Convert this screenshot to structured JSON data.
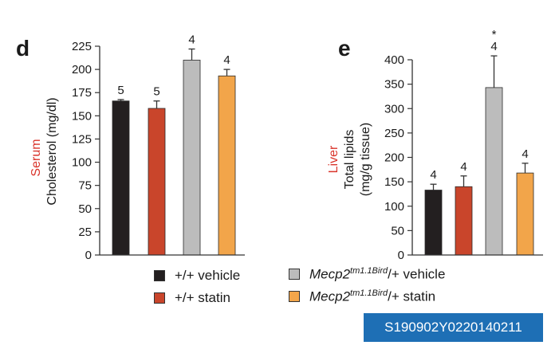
{
  "chart_data": [
    {
      "panel": "d",
      "type": "bar",
      "ylabel_colored": "Serum",
      "ylabel": "Cholesterol (mg/dl)",
      "ylim": [
        0,
        225
      ],
      "yticks": [
        0,
        25,
        50,
        75,
        100,
        125,
        150,
        175,
        200,
        225
      ],
      "categories": [
        "+/+ vehicle",
        "+/+ statin",
        "Mecp2tm1.1Bird/+ vehicle",
        "Mecp2tm1.1Bird/+ statin"
      ],
      "values": [
        166,
        158,
        210,
        193
      ],
      "errors": [
        1.5,
        8,
        12,
        7
      ],
      "n_labels": [
        "5",
        "5",
        "4",
        "4"
      ],
      "colors": [
        "#231f20",
        "#c9452b",
        "#bcbcbc",
        "#f2a54a"
      ],
      "grid": false
    },
    {
      "panel": "e",
      "type": "bar",
      "ylabel_colored": "Liver",
      "ylabel": "Total lipids",
      "ylabel2": "(mg/g tissue)",
      "ylim": [
        0,
        400
      ],
      "yticks": [
        0,
        50,
        100,
        150,
        200,
        250,
        300,
        350,
        400
      ],
      "categories": [
        "+/+ vehicle",
        "+/+ statin",
        "Mecp2tm1.1Bird/+ vehicle",
        "Mecp2tm1.1Bird/+ statin"
      ],
      "values": [
        133,
        140,
        343,
        168
      ],
      "errors": [
        12,
        22,
        65,
        20
      ],
      "n_labels": [
        "4",
        "4",
        "4",
        "4"
      ],
      "annotations": [
        "",
        "",
        "*",
        ""
      ],
      "colors": [
        "#231f20",
        "#c9452b",
        "#bcbcbc",
        "#f2a54a"
      ],
      "grid": false
    }
  ],
  "legend": [
    {
      "label": "+/+ vehicle",
      "color": "#231f20"
    },
    {
      "label": "+/+ statin",
      "color": "#c9452b"
    },
    {
      "gene": "Mecp2",
      "sup": "tm1.1Bird",
      "rest": "/+ vehicle",
      "color": "#bcbcbc"
    },
    {
      "gene": "Mecp2",
      "sup": "tm1.1Bird",
      "rest": "/+ statin",
      "color": "#f2a54a"
    }
  ],
  "badge": {
    "text": "S190902Y0220140211",
    "color": "#1e6fb5"
  },
  "label_color": "#d9342b"
}
